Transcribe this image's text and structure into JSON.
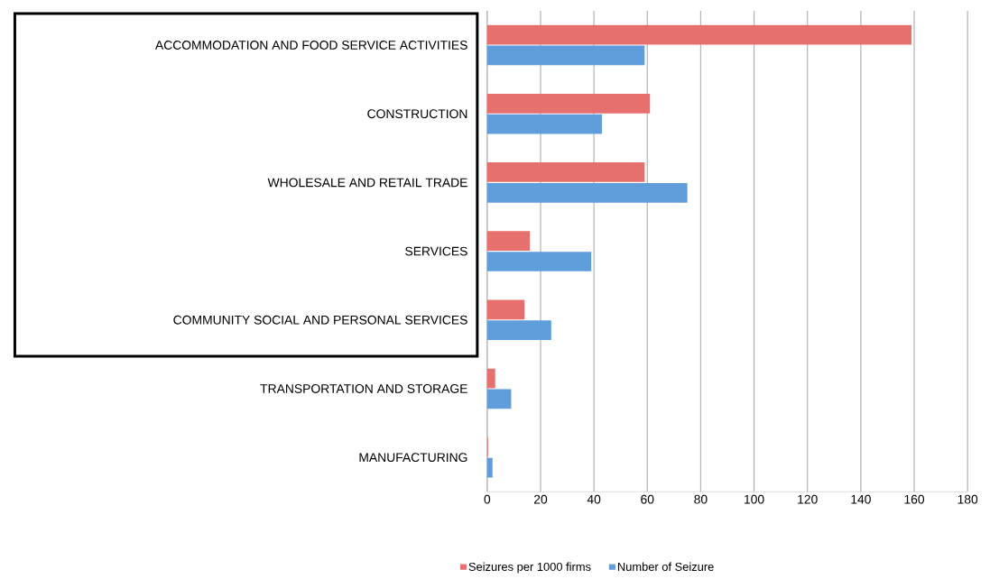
{
  "chart_data": {
    "type": "bar",
    "orientation": "horizontal",
    "categories": [
      "ACCOMMODATION AND FOOD SERVICE ACTIVITIES",
      "CONSTRUCTION",
      "WHOLESALE AND RETAIL TRADE",
      "SERVICES",
      "COMMUNITY SOCIAL AND PERSONAL SERVICES",
      "TRANSPORTATION AND STORAGE",
      "MANUFACTURING"
    ],
    "series": [
      {
        "name": "Seizures per 1000 firms",
        "color": "#e5706e",
        "values": [
          159,
          61,
          59,
          16,
          14,
          3,
          0.3
        ]
      },
      {
        "name": "Number of Seizure",
        "color": "#5f9ddb",
        "values": [
          59,
          43,
          75,
          39,
          24,
          9,
          2
        ]
      }
    ],
    "xlim": [
      0,
      180
    ],
    "xticks": [
      0,
      20,
      40,
      60,
      80,
      100,
      120,
      140,
      160,
      180
    ],
    "grid": "x",
    "legend": "bottom"
  }
}
